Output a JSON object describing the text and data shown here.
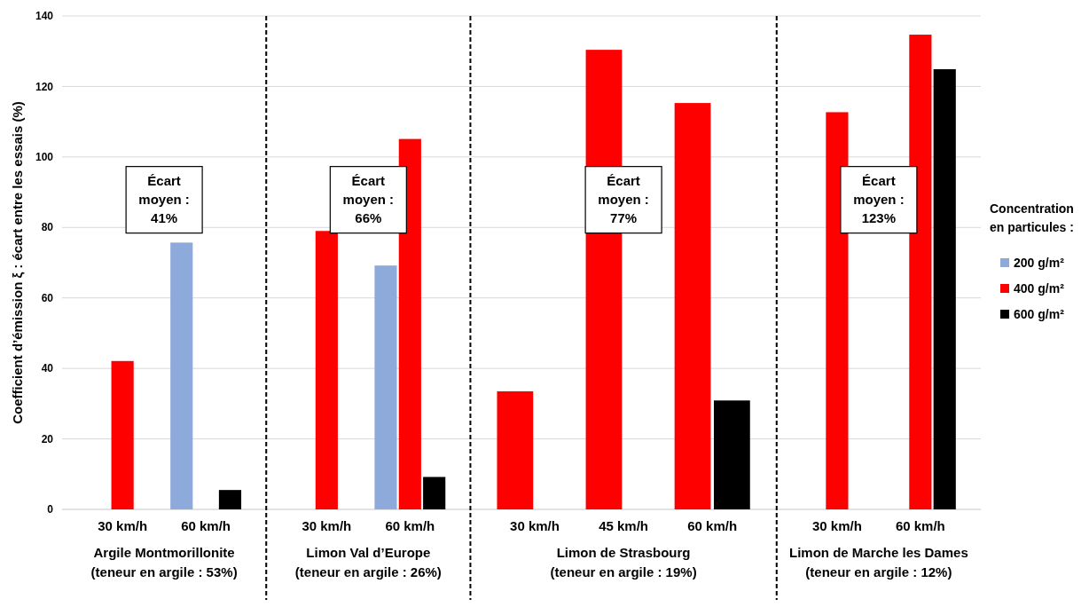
{
  "chart_data": [
    {
      "type": "bar",
      "categories": [
        "30 km/h",
        "60 km/h"
      ],
      "xlabel": "Argile Montmorillonite\n(teneur en argile : 53%)",
      "ylabel": "Coefficient d’émission ξ : écart entre les essais (%)",
      "ylim": [
        0,
        140
      ],
      "yticks": [
        0,
        20,
        40,
        60,
        80,
        100,
        120,
        140
      ],
      "grid": "y",
      "annotations": [
        "Écart\nmoyen :\n41%"
      ],
      "series": [
        {
          "color": "#8eaadb",
          "values": [
            null,
            75.7
          ]
        },
        {
          "color": "#ff0000",
          "values": [
            42.1,
            null
          ]
        },
        {
          "color": "#000000",
          "values": [
            null,
            5.5
          ]
        }
      ]
    },
    {
      "type": "bar",
      "categories": [
        "30 km/h",
        "60 km/h"
      ],
      "xlabel": "Limon Val d’Europe\n(teneur en argile : 26%)",
      "ylim": [
        0,
        140
      ],
      "yticks": [
        0,
        20,
        40,
        60,
        80,
        100,
        120,
        140
      ],
      "grid": "y",
      "tick_labels": "x",
      "annotations": [
        "Écart\nmoyen :\n66%"
      ],
      "series": [
        {
          "color": "#8eaadb",
          "values": [
            null,
            69.2
          ]
        },
        {
          "color": "#ff0000",
          "values": [
            79.0,
            105.1
          ]
        },
        {
          "color": "#000000",
          "values": [
            null,
            9.2
          ]
        }
      ]
    },
    {
      "type": "bar",
      "categories": [
        "30 km/h",
        "45 km/h",
        "60 km/h"
      ],
      "xlabel": "Limon de Strasbourg\n(teneur en argile : 19%)",
      "ylim": [
        0,
        140
      ],
      "yticks": [
        0,
        20,
        40,
        60,
        80,
        100,
        120,
        140
      ],
      "grid": "y",
      "tick_labels": "x",
      "annotations": [
        "Écart\nmoyen :\n77%"
      ],
      "series": [
        {
          "color": "#ff0000",
          "values": [
            33.5,
            130.4,
            115.3
          ]
        },
        {
          "color": "#000000",
          "values": [
            null,
            null,
            30.9
          ]
        }
      ]
    },
    {
      "type": "bar",
      "categories": [
        "30 km/h",
        "60 km/h"
      ],
      "xlabel": "Limon de Marche les Dames\n(teneur en argile : 12%)",
      "ylim": [
        0,
        140
      ],
      "yticks": [
        0,
        20,
        40,
        60,
        80,
        100,
        120,
        140
      ],
      "grid": "y",
      "tick_labels": "x",
      "annotations": [
        "Écart\nmoyen :\n123%"
      ],
      "legend": "right",
      "legend_title": "Concentration\nen particules :",
      "series": [
        {
          "name": "200 g/m²",
          "color": "#8eaadb",
          "values": [
            null,
            null
          ]
        },
        {
          "name": "400 g/m²",
          "color": "#ff0000",
          "values": [
            112.7,
            134.7
          ]
        },
        {
          "name": "600 g/m²",
          "color": "#000000",
          "values": [
            null,
            124.9
          ]
        }
      ]
    }
  ]
}
